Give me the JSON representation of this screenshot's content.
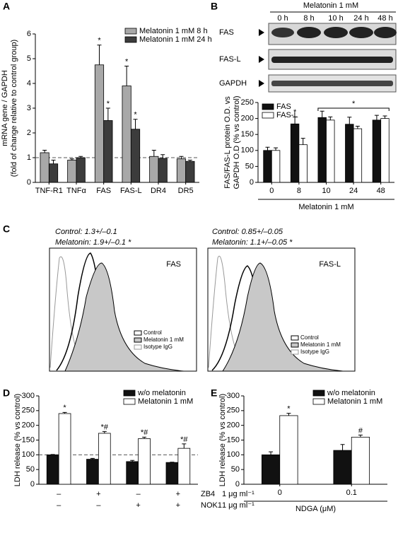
{
  "panel_labels": [
    "A",
    "B",
    "C",
    "D",
    "E"
  ],
  "blot": {
    "header": "Melatonin 1 mM",
    "lanes": [
      "0 h",
      "8 h",
      "10 h",
      "24 h",
      "48 h"
    ],
    "rows": [
      "FAS",
      "FAS-L",
      "GAPDH"
    ]
  },
  "flow": [
    {
      "lines": [
        "Control: 1.3+/–0.1",
        "Melatonin: 1.9+/–0.1 *"
      ],
      "label": "FAS",
      "legend": [
        "Control",
        "Melatonin 1 mM",
        "Isotype IgG"
      ]
    },
    {
      "lines": [
        "Control: 0.85+/–0.05",
        "Melatonin: 1.1+/–0.05 *"
      ],
      "label": "FAS-L",
      "legend": [
        "Control",
        "Melatonin 1 mM",
        "Isotype IgG"
      ]
    }
  ],
  "chart_data": [
    {
      "type": "bar",
      "ylabel": [
        "mRNA gene / GAPDH",
        "(fold of change relative to control group)"
      ],
      "categories": [
        "TNF-R1",
        "TNFα",
        "FAS",
        "FAS-L",
        "DR4",
        "DR5"
      ],
      "ylim": [
        0,
        6
      ],
      "yticks": [
        0,
        1,
        2,
        3,
        4,
        5,
        6
      ],
      "reference_line": 1,
      "legend": "upper right",
      "series": [
        {
          "name": "Melatonin 1 mM 8 h",
          "color": "#a8a8a8",
          "values": [
            1.2,
            0.9,
            4.75,
            3.9,
            1.05,
            0.95
          ],
          "errors": [
            0.1,
            0.05,
            0.8,
            0.8,
            0.25,
            0.1
          ],
          "significance": [
            null,
            null,
            "*",
            "*",
            null,
            null
          ]
        },
        {
          "name": "Melatonin 1 mM 24 h",
          "color": "#3c3c3c",
          "values": [
            0.75,
            1.0,
            2.5,
            2.15,
            0.97,
            0.85
          ],
          "errors": [
            0.15,
            0.05,
            0.5,
            0.4,
            0.15,
            0.05
          ],
          "significance": [
            null,
            null,
            "*",
            "*",
            null,
            null
          ]
        }
      ]
    },
    {
      "type": "bar",
      "ylabel": [
        "FAS/FAS-L protein O.D. vs",
        "GAPDH O.D (% vs control)"
      ],
      "categories": [
        "0",
        "8",
        "10",
        "24",
        "48"
      ],
      "xlabel": "Melatonin 1 mM",
      "ylim": [
        0,
        250
      ],
      "yticks": [
        0,
        50,
        100,
        150,
        200,
        250
      ],
      "legend": "upper left",
      "bracket": {
        "text": "*",
        "categories": [
          "10",
          "48"
        ]
      },
      "series": [
        {
          "name": "FAS",
          "color": "#111111",
          "values": [
            100,
            183,
            203,
            182,
            195
          ],
          "errors": [
            10,
            22,
            20,
            22,
            15
          ],
          "significance": [
            null,
            "*",
            null,
            null,
            null
          ]
        },
        {
          "name": "FAS-L",
          "color": "#ffffff",
          "values": [
            100,
            118,
            195,
            168,
            200
          ],
          "errors": [
            8,
            20,
            10,
            8,
            8
          ],
          "significance": [
            null,
            null,
            null,
            null,
            null
          ]
        }
      ]
    },
    {
      "type": "bar",
      "ylabel": [
        "LDH release (% vs control)"
      ],
      "ylim": [
        0,
        300
      ],
      "yticks": [
        0,
        50,
        100,
        150,
        200,
        250,
        300
      ],
      "reference_line": 100,
      "legend": "upper right",
      "treatments": [
        {
          "name": "ZB4",
          "dose": "1 μg ml⁻¹",
          "signs": [
            "–",
            "+",
            "–",
            "+"
          ]
        },
        {
          "name": "NOK1",
          "dose": "1 μg ml⁻¹",
          "signs": [
            "–",
            "–",
            "+",
            "+"
          ]
        }
      ],
      "series": [
        {
          "name": "w/o melatonin",
          "color": "#111111",
          "values": [
            100,
            85,
            77,
            74
          ],
          "errors": [
            1,
            3,
            4,
            1
          ],
          "significance": [
            null,
            null,
            null,
            null
          ]
        },
        {
          "name": "Melatonin 1 mM",
          "color": "#ffffff",
          "values": [
            240,
            173,
            155,
            122
          ],
          "errors": [
            4,
            6,
            5,
            15
          ],
          "significance": [
            "*",
            "*#",
            "*#",
            "*#"
          ]
        }
      ]
    },
    {
      "type": "bar",
      "ylabel": [
        "LDH release (% vs control)"
      ],
      "categories": [
        "0",
        "0.1"
      ],
      "xlabel": "NDGA (μM)",
      "ylim": [
        0,
        300
      ],
      "yticks": [
        0,
        50,
        100,
        150,
        200,
        250,
        300
      ],
      "legend": "upper right",
      "series": [
        {
          "name": "w/o melatonin",
          "color": "#111111",
          "values": [
            100,
            115
          ],
          "errors": [
            10,
            20
          ],
          "significance": [
            null,
            null
          ]
        },
        {
          "name": "Melatonin 1 mM",
          "color": "#ffffff",
          "values": [
            233,
            160
          ],
          "errors": [
            8,
            7
          ],
          "significance": [
            "*",
            "#"
          ]
        }
      ]
    }
  ]
}
